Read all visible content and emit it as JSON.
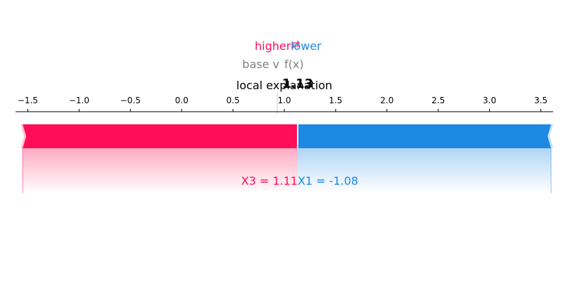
{
  "chart_data": {
    "type": "bar",
    "title": "local explanation",
    "legend": {
      "higher_label": "higher",
      "lower_label": "lower",
      "arrow": "⇄",
      "higher_color": "#ff0d57",
      "lower_color": "#1e88e5"
    },
    "base_value_label": "base v",
    "fx_label": "f(x)",
    "fx_value": 1.13,
    "fx_value_text": "1.13",
    "base_value": 1.0,
    "xlim": [
      -1.62,
      3.62
    ],
    "ticks": [
      -1.5,
      -1.0,
      -0.5,
      0.0,
      0.5,
      1.0,
      1.5,
      2.0,
      2.5,
      3.0,
      3.5
    ],
    "tick_labels": [
      "−1.5",
      "−1.0",
      "−0.5",
      "0.0",
      "0.5",
      "1.0",
      "1.5",
      "2.0",
      "2.5",
      "3.0",
      "3.5"
    ],
    "series": [
      {
        "label": "X3 = 1.11",
        "direction": "higher",
        "start": -1.55,
        "end": 1.13,
        "color": "#ff0d57"
      },
      {
        "label": "X1 = -1.08",
        "direction": "lower",
        "start": 1.13,
        "end": 3.6,
        "color": "#1e88e5"
      }
    ]
  }
}
